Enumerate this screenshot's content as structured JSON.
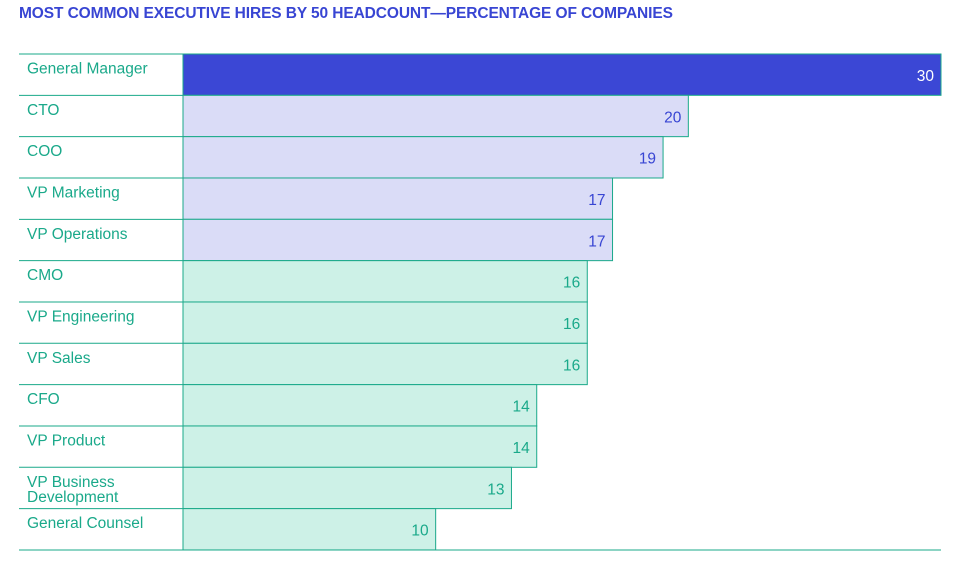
{
  "title": "MOST COMMON EXECUTIVE HIRES BY 50 HEADCOUNT—PERCENTAGE OF COMPANIES",
  "colors": {
    "title": "#3845d3",
    "highlight_fill": "#3b47d5",
    "lavender_fill": "#dadcf7",
    "mint_fill": "#cdf1e7",
    "outline": "#1aa98a",
    "category_text": "#1aa98a",
    "value_text_on_dark": "#ffffff",
    "value_text_lavender": "#3845d3",
    "value_text_mint": "#1aa98a"
  },
  "chart_data": {
    "type": "bar",
    "orientation": "horizontal",
    "title": "MOST COMMON EXECUTIVE HIRES BY 50 HEADCOUNT—PERCENTAGE OF COMPANIES",
    "categories": [
      "General Manager",
      "CTO",
      "COO",
      "VP Marketing",
      "VP Operations",
      "CMO",
      "VP Engineering",
      "VP Sales",
      "CFO",
      "VP Product",
      "VP Business Development",
      "General Counsel"
    ],
    "values": [
      30,
      20,
      19,
      17,
      17,
      16,
      16,
      16,
      14,
      14,
      13,
      10
    ],
    "color_groups": [
      "highlight",
      "lavender",
      "lavender",
      "lavender",
      "lavender",
      "mint",
      "mint",
      "mint",
      "mint",
      "mint",
      "mint",
      "mint"
    ],
    "xlim": [
      0,
      30
    ],
    "xlabel": "",
    "ylabel": "",
    "grid": false,
    "legend": "none"
  }
}
